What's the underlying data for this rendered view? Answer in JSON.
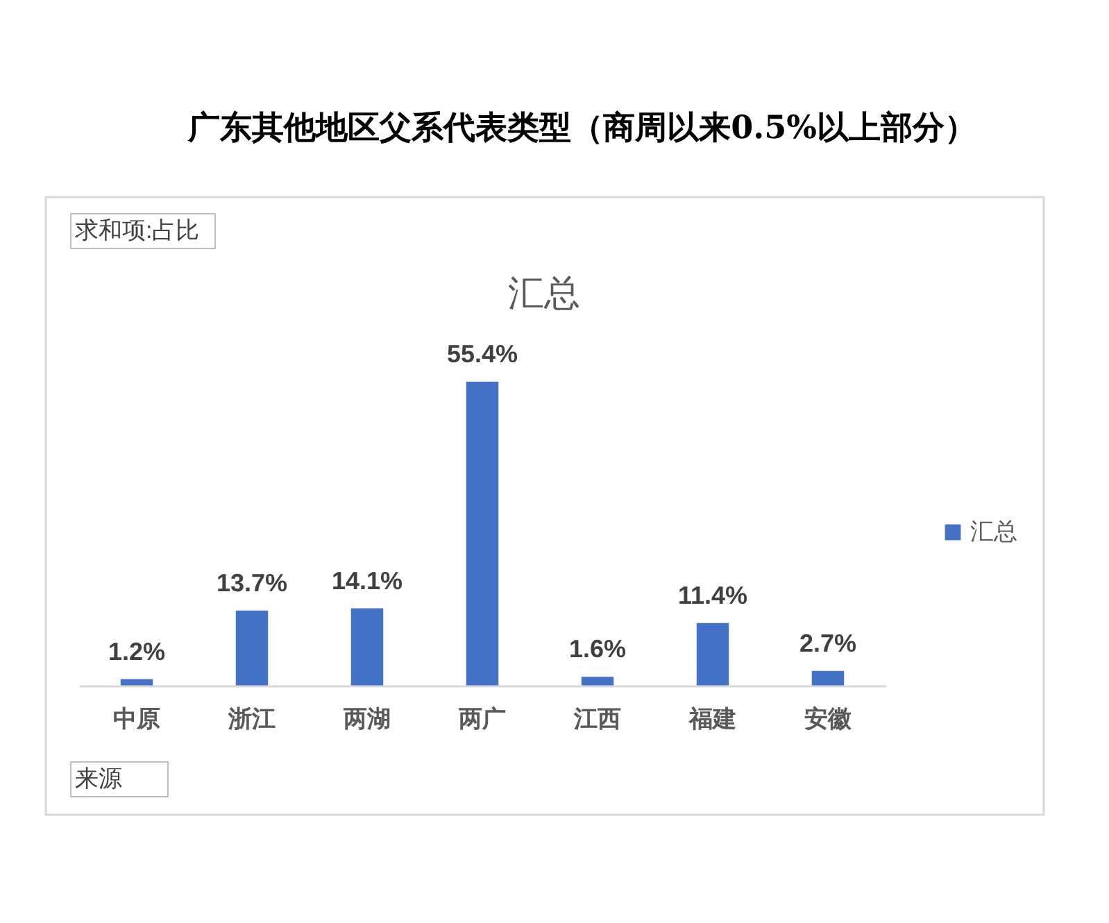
{
  "chart_data": {
    "type": "bar",
    "title": "广东其他地区父系代表类型（商周以来0.5%以上部分）",
    "subtitle": "汇总",
    "categories": [
      "中原",
      "浙江",
      "两湖",
      "两广",
      "江西",
      "福建",
      "安徽"
    ],
    "series": [
      {
        "name": "汇总",
        "color": "#4472c4",
        "values": [
          1.2,
          13.7,
          14.1,
          55.4,
          1.6,
          11.4,
          2.7
        ],
        "value_labels": [
          "1.2%",
          "13.7%",
          "14.1%",
          "55.4%",
          "1.6%",
          "11.4%",
          "2.7%"
        ]
      }
    ],
    "legend": "right",
    "annotations": [
      "求和项:占比",
      "来源"
    ]
  }
}
